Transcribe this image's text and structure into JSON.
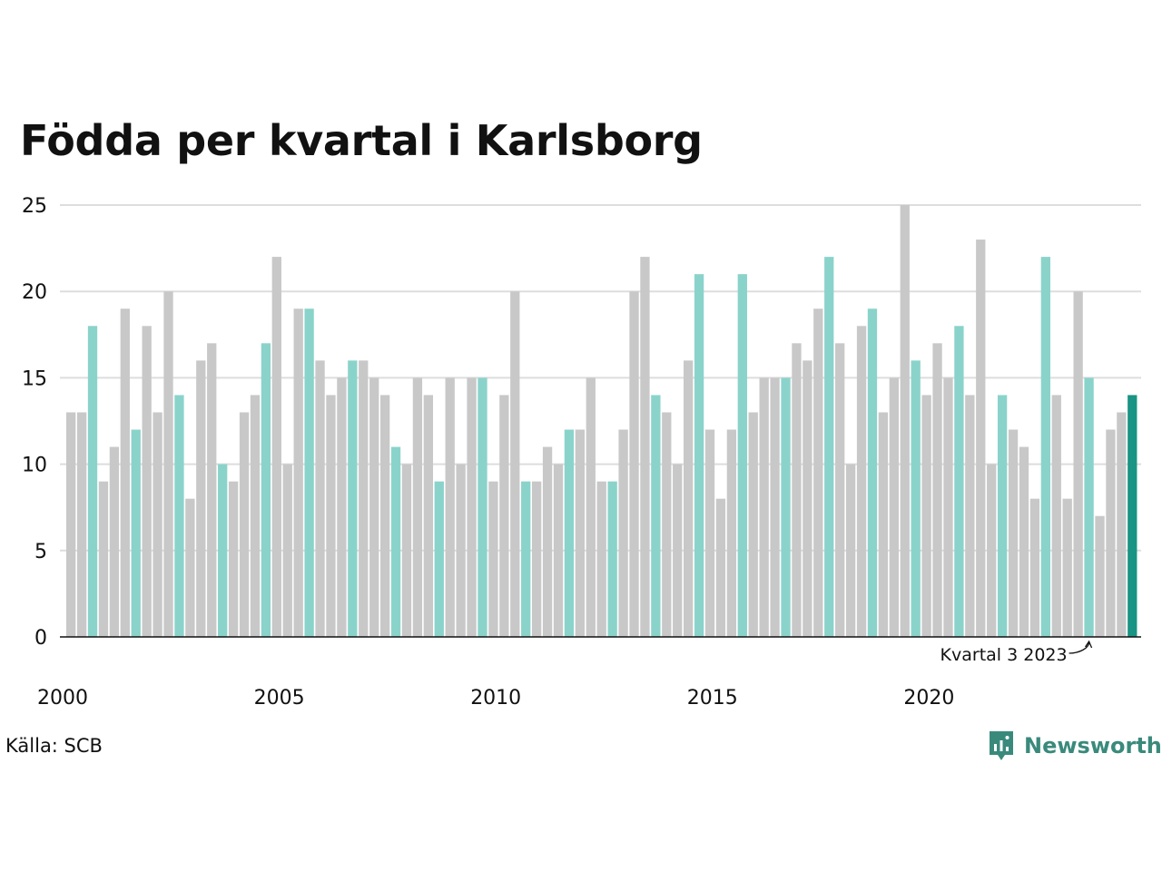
{
  "chart_data": {
    "type": "bar",
    "title": "Födda per kvartal i Karlsborg",
    "xlabel": "",
    "ylabel": "",
    "ylim": [
      0,
      25
    ],
    "yticks": [
      0,
      5,
      10,
      15,
      20,
      25
    ],
    "xtick_labels": [
      "2000",
      "2005",
      "2010",
      "2015",
      "2020"
    ],
    "grid": "horizontal",
    "start_year": 2000,
    "values": [
      13,
      13,
      18,
      9,
      11,
      19,
      12,
      18,
      13,
      20,
      14,
      8,
      16,
      17,
      10,
      9,
      13,
      14,
      17,
      22,
      10,
      19,
      19,
      16,
      14,
      15,
      16,
      16,
      15,
      14,
      11,
      10,
      15,
      14,
      9,
      15,
      10,
      15,
      15,
      9,
      14,
      20,
      9,
      9,
      11,
      10,
      12,
      12,
      15,
      9,
      9,
      12,
      20,
      22,
      14,
      13,
      10,
      16,
      21,
      12,
      8,
      12,
      21,
      13,
      15,
      15,
      15,
      17,
      16,
      19,
      22,
      17,
      10,
      18,
      19,
      13,
      15,
      25,
      16,
      14,
      17,
      15,
      18,
      14,
      23,
      10,
      14,
      12,
      11,
      8,
      22,
      14,
      8,
      20,
      15,
      7,
      12,
      13,
      14
    ],
    "colors": {
      "bar": "#c8c8c8",
      "highlight_q3": "#8ad3cb",
      "latest": "#1a9484",
      "grid": "#dddddd",
      "axis": "#111111"
    },
    "annotation": {
      "text": "Kvartal 3 2023",
      "index": 94
    }
  },
  "footer": {
    "source": "Källa: SCB",
    "logo_text": "Newsworthy",
    "logo_icon": "bar-chart-speech-bubble-icon"
  }
}
